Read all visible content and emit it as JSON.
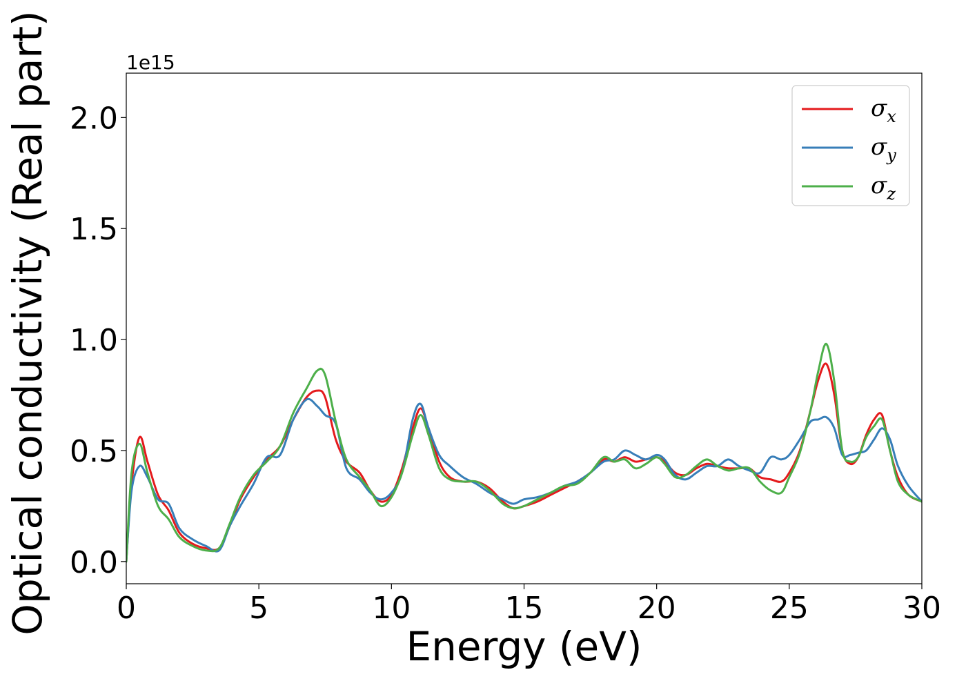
{
  "chart_data": {
    "type": "line",
    "xlabel": "Energy (eV)",
    "ylabel": "Optical conductivity (Real part)",
    "y_offset_label": "1e15",
    "y_scale_factor": 1000000000000000.0,
    "xlim": [
      0,
      30
    ],
    "ylim": [
      -0.1,
      2.2
    ],
    "x_ticks": [
      0,
      5,
      10,
      15,
      20,
      25,
      30
    ],
    "x_tick_labels": [
      "0",
      "5",
      "10",
      "15",
      "20",
      "25",
      "30"
    ],
    "y_ticks": [
      0.0,
      0.5,
      1.0,
      1.5,
      2.0
    ],
    "y_tick_labels": [
      "0.0",
      "0.5",
      "1.0",
      "1.5",
      "2.0"
    ],
    "grid": false,
    "legend_position": "top-right",
    "series": [
      {
        "name": "σx",
        "legend_symbol": "σ",
        "legend_subscript": "x",
        "color": "#e41a1c",
        "x": [
          0,
          0.2,
          0.5,
          0.8,
          1.2,
          1.6,
          2.0,
          2.5,
          3.0,
          3.5,
          3.9,
          4.3,
          4.8,
          5.3,
          5.8,
          6.3,
          6.8,
          7.2,
          7.5,
          7.9,
          8.3,
          8.8,
          9.2,
          9.6,
          10.0,
          10.4,
          10.8,
          11.1,
          11.4,
          11.8,
          12.2,
          12.7,
          13.2,
          13.7,
          14.2,
          14.6,
          15.0,
          15.5,
          16.0,
          16.5,
          17.0,
          17.5,
          18.0,
          18.4,
          18.8,
          19.2,
          19.6,
          20.0,
          20.3,
          20.7,
          21.1,
          21.5,
          21.9,
          22.3,
          22.7,
          23.1,
          23.5,
          23.9,
          24.3,
          24.7,
          25.0,
          25.4,
          25.8,
          26.1,
          26.4,
          26.7,
          27.0,
          27.3,
          27.6,
          27.9,
          28.2,
          28.5,
          28.8,
          29.1,
          29.5,
          30.0
        ],
        "y": [
          0.0,
          0.35,
          0.56,
          0.45,
          0.3,
          0.23,
          0.13,
          0.08,
          0.06,
          0.06,
          0.16,
          0.28,
          0.38,
          0.46,
          0.52,
          0.64,
          0.74,
          0.77,
          0.74,
          0.55,
          0.45,
          0.4,
          0.32,
          0.27,
          0.3,
          0.42,
          0.6,
          0.69,
          0.6,
          0.45,
          0.38,
          0.36,
          0.36,
          0.33,
          0.27,
          0.24,
          0.25,
          0.27,
          0.3,
          0.33,
          0.36,
          0.4,
          0.46,
          0.45,
          0.47,
          0.45,
          0.46,
          0.47,
          0.45,
          0.4,
          0.39,
          0.42,
          0.44,
          0.43,
          0.42,
          0.42,
          0.42,
          0.38,
          0.37,
          0.36,
          0.4,
          0.5,
          0.68,
          0.82,
          0.89,
          0.75,
          0.5,
          0.44,
          0.47,
          0.57,
          0.64,
          0.66,
          0.5,
          0.38,
          0.3,
          0.27
        ]
      },
      {
        "name": "σy",
        "legend_symbol": "σ",
        "legend_subscript": "y",
        "color": "#377eb8",
        "x": [
          0,
          0.2,
          0.5,
          0.8,
          1.2,
          1.6,
          2.0,
          2.5,
          3.0,
          3.5,
          3.9,
          4.3,
          4.8,
          5.3,
          5.8,
          6.3,
          6.8,
          7.2,
          7.5,
          7.9,
          8.3,
          8.8,
          9.2,
          9.6,
          10.0,
          10.4,
          10.8,
          11.1,
          11.4,
          11.8,
          12.2,
          12.7,
          13.2,
          13.7,
          14.2,
          14.6,
          15.0,
          15.5,
          16.0,
          16.5,
          17.0,
          17.5,
          18.0,
          18.4,
          18.8,
          19.2,
          19.6,
          20.0,
          20.3,
          20.7,
          21.1,
          21.5,
          21.9,
          22.3,
          22.7,
          23.1,
          23.5,
          23.9,
          24.3,
          24.7,
          25.0,
          25.4,
          25.8,
          26.1,
          26.4,
          26.7,
          27.0,
          27.3,
          27.6,
          27.9,
          28.2,
          28.5,
          28.8,
          29.1,
          29.5,
          30.0
        ],
        "y": [
          0.0,
          0.32,
          0.43,
          0.38,
          0.28,
          0.26,
          0.15,
          0.1,
          0.07,
          0.05,
          0.16,
          0.25,
          0.35,
          0.47,
          0.48,
          0.64,
          0.73,
          0.7,
          0.66,
          0.62,
          0.42,
          0.37,
          0.31,
          0.28,
          0.31,
          0.4,
          0.64,
          0.71,
          0.6,
          0.48,
          0.43,
          0.38,
          0.35,
          0.31,
          0.28,
          0.26,
          0.28,
          0.29,
          0.31,
          0.34,
          0.36,
          0.4,
          0.45,
          0.46,
          0.5,
          0.48,
          0.46,
          0.48,
          0.46,
          0.39,
          0.37,
          0.4,
          0.43,
          0.43,
          0.46,
          0.43,
          0.41,
          0.4,
          0.47,
          0.46,
          0.48,
          0.55,
          0.63,
          0.64,
          0.65,
          0.6,
          0.48,
          0.48,
          0.49,
          0.5,
          0.55,
          0.6,
          0.55,
          0.43,
          0.34,
          0.27
        ]
      },
      {
        "name": "σz",
        "legend_symbol": "σ",
        "legend_subscript": "z",
        "color": "#4daf4a",
        "x": [
          0,
          0.2,
          0.5,
          0.8,
          1.2,
          1.6,
          2.0,
          2.5,
          3.0,
          3.5,
          3.9,
          4.3,
          4.8,
          5.3,
          5.8,
          6.3,
          6.8,
          7.2,
          7.5,
          7.9,
          8.3,
          8.8,
          9.2,
          9.6,
          10.0,
          10.4,
          10.8,
          11.1,
          11.4,
          11.8,
          12.2,
          12.7,
          13.2,
          13.7,
          14.2,
          14.6,
          15.0,
          15.5,
          16.0,
          16.5,
          17.0,
          17.5,
          18.0,
          18.4,
          18.8,
          19.2,
          19.6,
          20.0,
          20.3,
          20.7,
          21.1,
          21.5,
          21.9,
          22.3,
          22.7,
          23.1,
          23.5,
          23.9,
          24.3,
          24.7,
          25.0,
          25.4,
          25.8,
          26.1,
          26.4,
          26.7,
          27.0,
          27.3,
          27.6,
          27.9,
          28.2,
          28.5,
          28.8,
          29.1,
          29.5,
          30.0
        ],
        "y": [
          0.0,
          0.4,
          0.53,
          0.4,
          0.25,
          0.19,
          0.11,
          0.07,
          0.05,
          0.06,
          0.17,
          0.29,
          0.39,
          0.45,
          0.52,
          0.67,
          0.78,
          0.86,
          0.84,
          0.63,
          0.46,
          0.38,
          0.32,
          0.25,
          0.29,
          0.4,
          0.57,
          0.66,
          0.57,
          0.42,
          0.37,
          0.36,
          0.36,
          0.32,
          0.26,
          0.24,
          0.25,
          0.28,
          0.31,
          0.34,
          0.35,
          0.4,
          0.47,
          0.45,
          0.46,
          0.42,
          0.44,
          0.47,
          0.44,
          0.38,
          0.39,
          0.43,
          0.46,
          0.43,
          0.41,
          0.42,
          0.42,
          0.36,
          0.32,
          0.31,
          0.38,
          0.49,
          0.68,
          0.86,
          0.98,
          0.81,
          0.5,
          0.45,
          0.47,
          0.56,
          0.61,
          0.64,
          0.5,
          0.36,
          0.3,
          0.27
        ]
      }
    ]
  }
}
